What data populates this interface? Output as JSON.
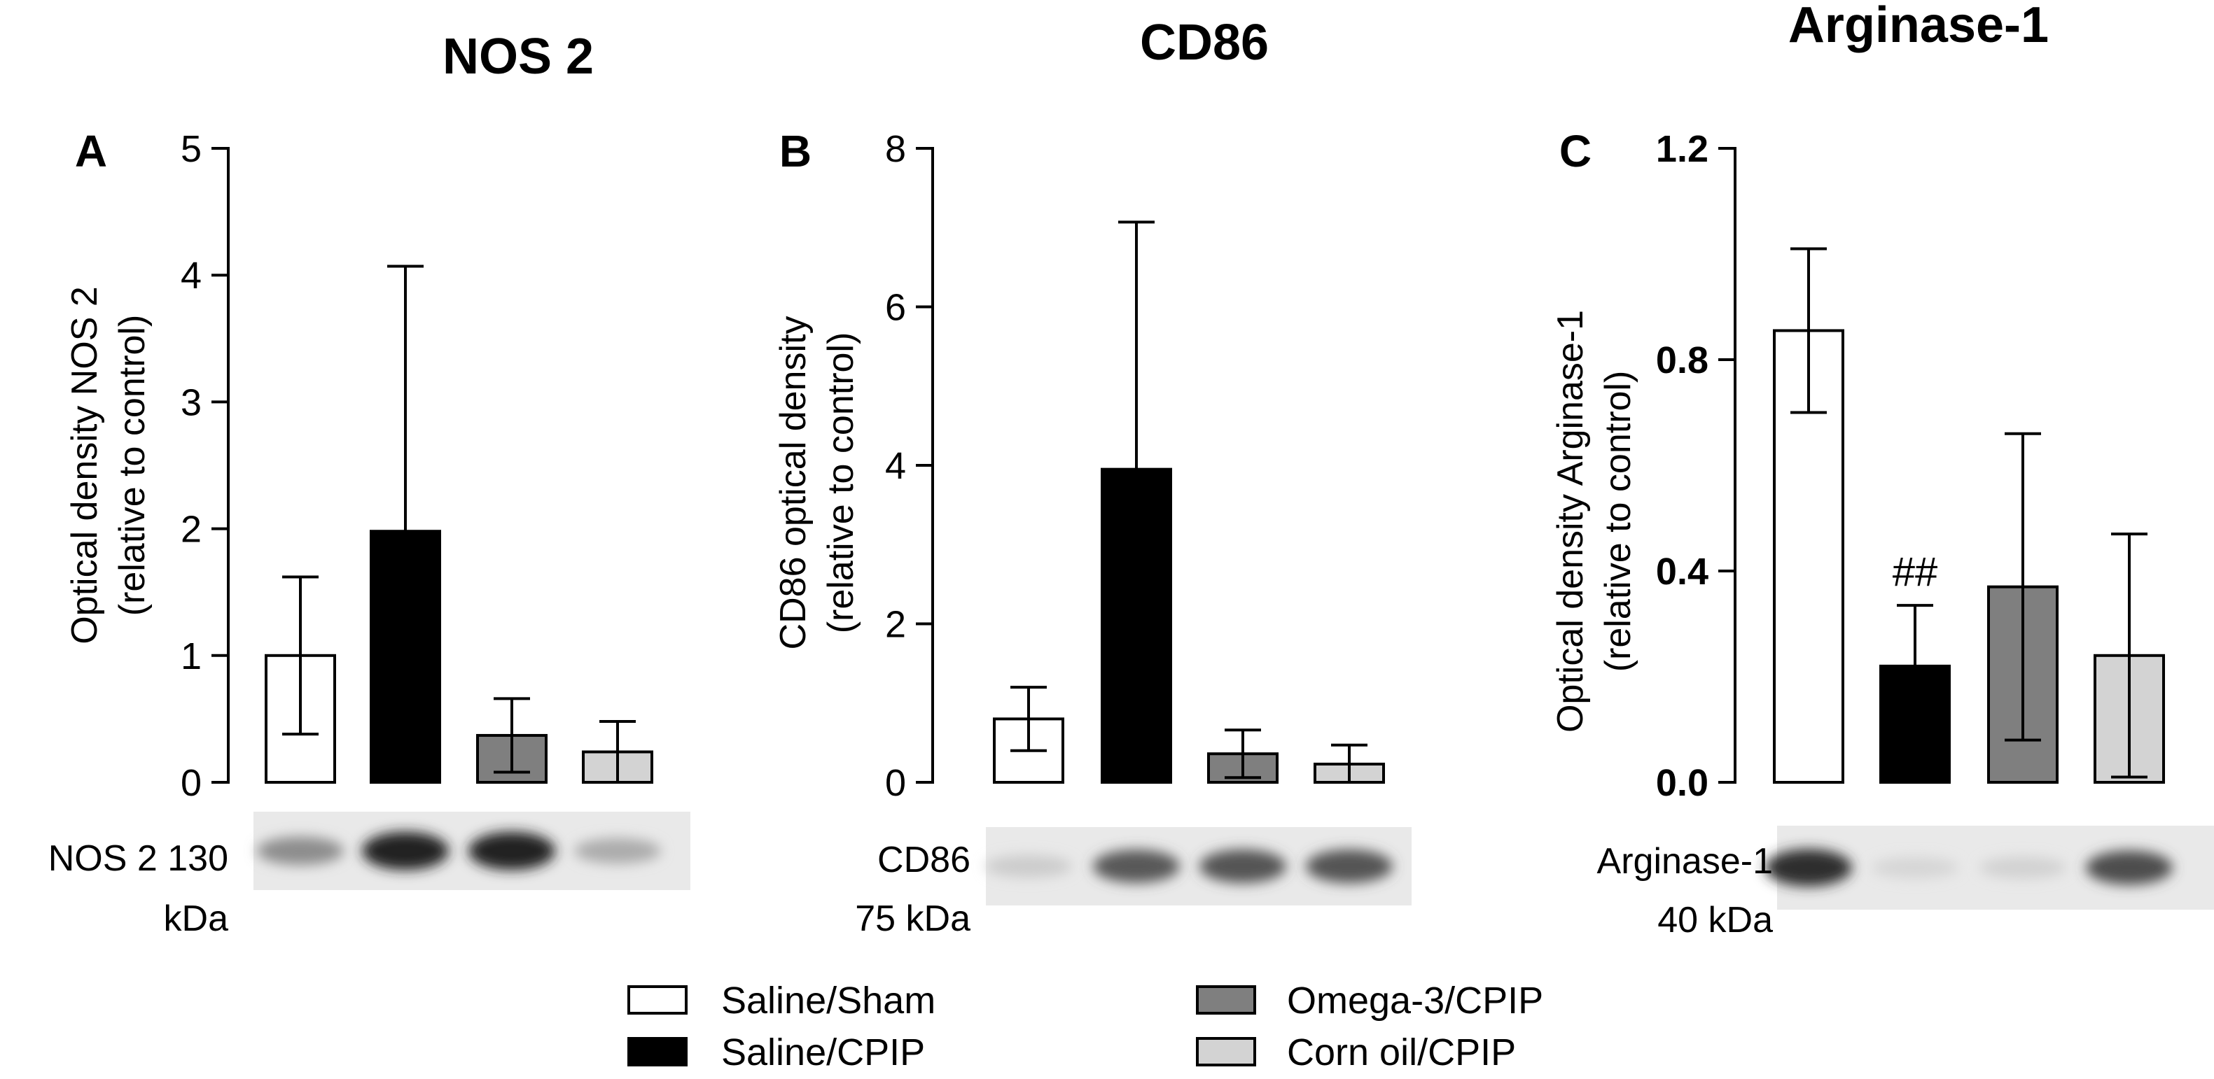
{
  "legend": [
    {
      "label": "Saline/Sham",
      "color": "#ffffff"
    },
    {
      "label": "Saline/CPIP",
      "color": "#000000"
    },
    {
      "label": "Omega-3/CPIP",
      "color": "#7f7f7f"
    },
    {
      "label": "Corn oil/CPIP",
      "color": "#d3d3d3"
    }
  ],
  "chart_data": [
    {
      "type": "bar",
      "panel": "A",
      "title": "NOS 2",
      "ylabel": [
        "Optical density NOS 2",
        "(relative to control)"
      ],
      "ylim": [
        0,
        5
      ],
      "yticks": [
        0,
        1,
        2,
        3,
        4,
        5
      ],
      "categories": [
        "Saline/Sham",
        "Saline/CPIP",
        "Omega-3/CPIP",
        "Corn oil/CPIP"
      ],
      "values": [
        1.0,
        1.98,
        0.37,
        0.24
      ],
      "errors": [
        0.62,
        2.09,
        0.29,
        0.24
      ],
      "annotations": [
        "",
        "",
        "",
        ""
      ],
      "blot_label": [
        "NOS 2 130",
        "kDa"
      ],
      "blot_bands": [
        0.45,
        0.95,
        0.95,
        0.3
      ]
    },
    {
      "type": "bar",
      "panel": "B",
      "title": "CD86",
      "ylabel": [
        "CD86 optical density",
        "(relative to control)"
      ],
      "ylim": [
        0,
        8
      ],
      "yticks": [
        0,
        2,
        4,
        6,
        8
      ],
      "categories": [
        "Saline/Sham",
        "Saline/CPIP",
        "Omega-3/CPIP",
        "Corn oil/CPIP"
      ],
      "values": [
        0.8,
        3.95,
        0.36,
        0.23
      ],
      "errors": [
        0.4,
        3.12,
        0.3,
        0.24
      ],
      "annotations": [
        "",
        "",
        "",
        ""
      ],
      "blot_label": [
        "CD86",
        "75 kDa"
      ],
      "blot_bands": [
        0.15,
        0.7,
        0.72,
        0.72
      ]
    },
    {
      "type": "bar",
      "panel": "C",
      "title": "Arginase-1",
      "ylabel": [
        "Optical density Arginase-1",
        "(relative to control)"
      ],
      "ylim": [
        0,
        1.2
      ],
      "yticks": [
        "0.0",
        "0.4",
        "0.8",
        "1.2"
      ],
      "categories": [
        "Saline/Sham",
        "Saline/CPIP",
        "Omega-3/CPIP",
        "Corn oil/CPIP"
      ],
      "values": [
        0.855,
        0.22,
        0.37,
        0.24
      ],
      "errors": [
        0.155,
        0.115,
        0.29,
        0.23
      ],
      "annotations": [
        "",
        "##",
        "",
        ""
      ],
      "blot_label": [
        "Arginase-1",
        "40 kDa"
      ],
      "blot_bands": [
        0.9,
        0.1,
        0.12,
        0.75
      ]
    }
  ]
}
